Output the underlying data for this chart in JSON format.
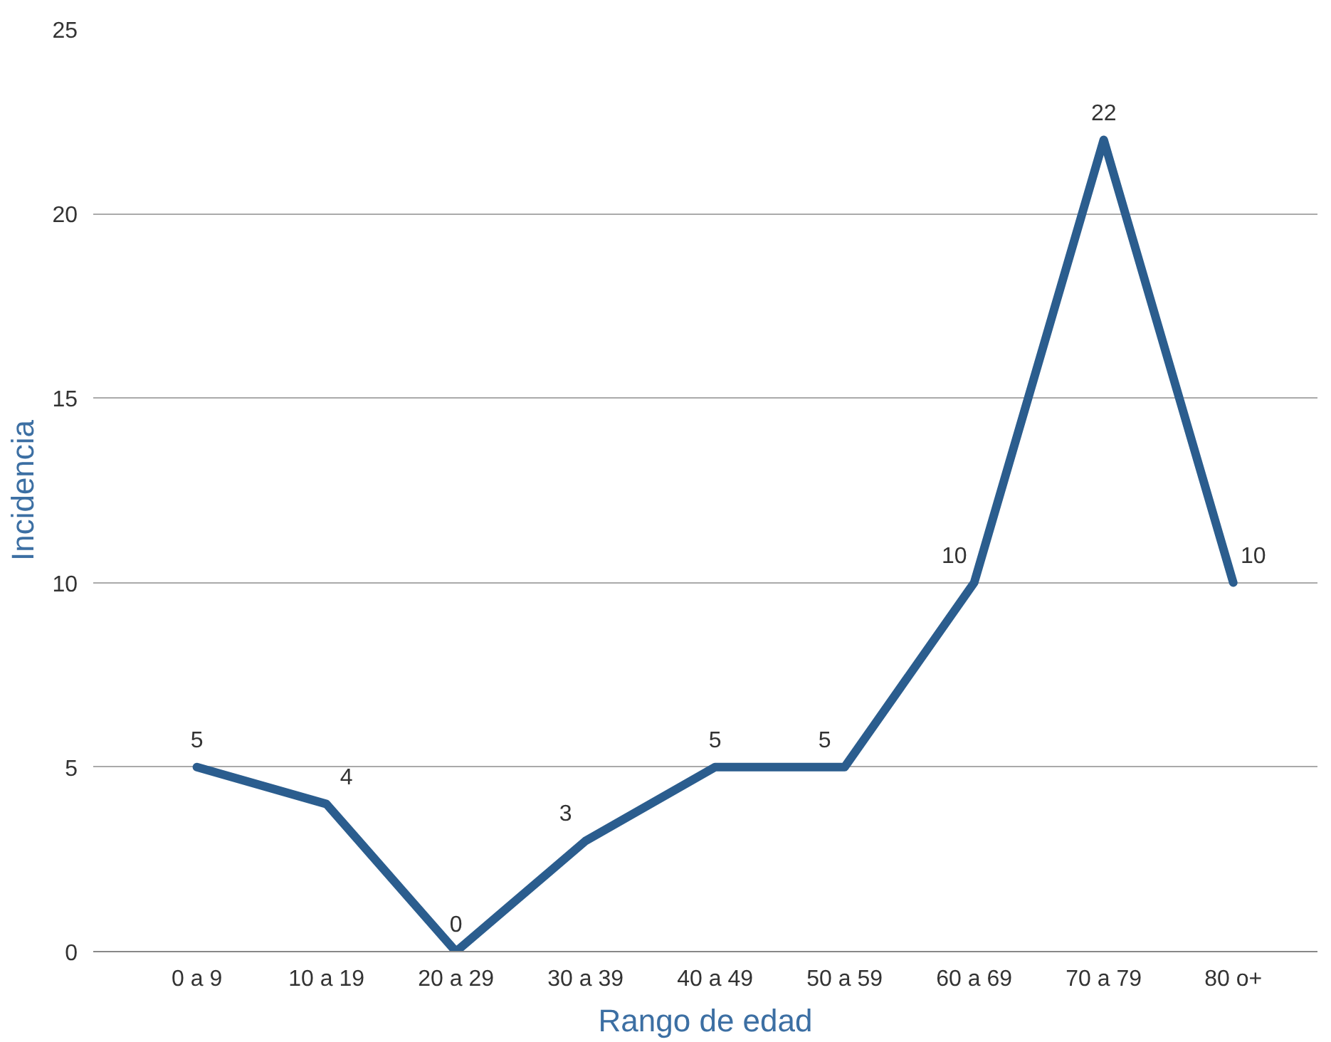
{
  "chart_data": {
    "type": "line",
    "xlabel": "Rango de edad",
    "ylabel": "Incidencia",
    "categories": [
      "0 a 9",
      "10 a 19",
      "20 a 29",
      "30 a 39",
      "40 a 49",
      "50 a 59",
      "60 a 69",
      "70 a 79",
      "80 o+"
    ],
    "series": [
      {
        "color": "#2b5d8e",
        "values": [
          5,
          4,
          0,
          3,
          5,
          5,
          10,
          22,
          10
        ]
      }
    ],
    "ylim": [
      0,
      25
    ],
    "yticks": [
      0,
      5,
      10,
      15,
      20,
      25
    ],
    "grid": "y",
    "data_labels": true,
    "marker": "none",
    "line_style": "solid"
  }
}
